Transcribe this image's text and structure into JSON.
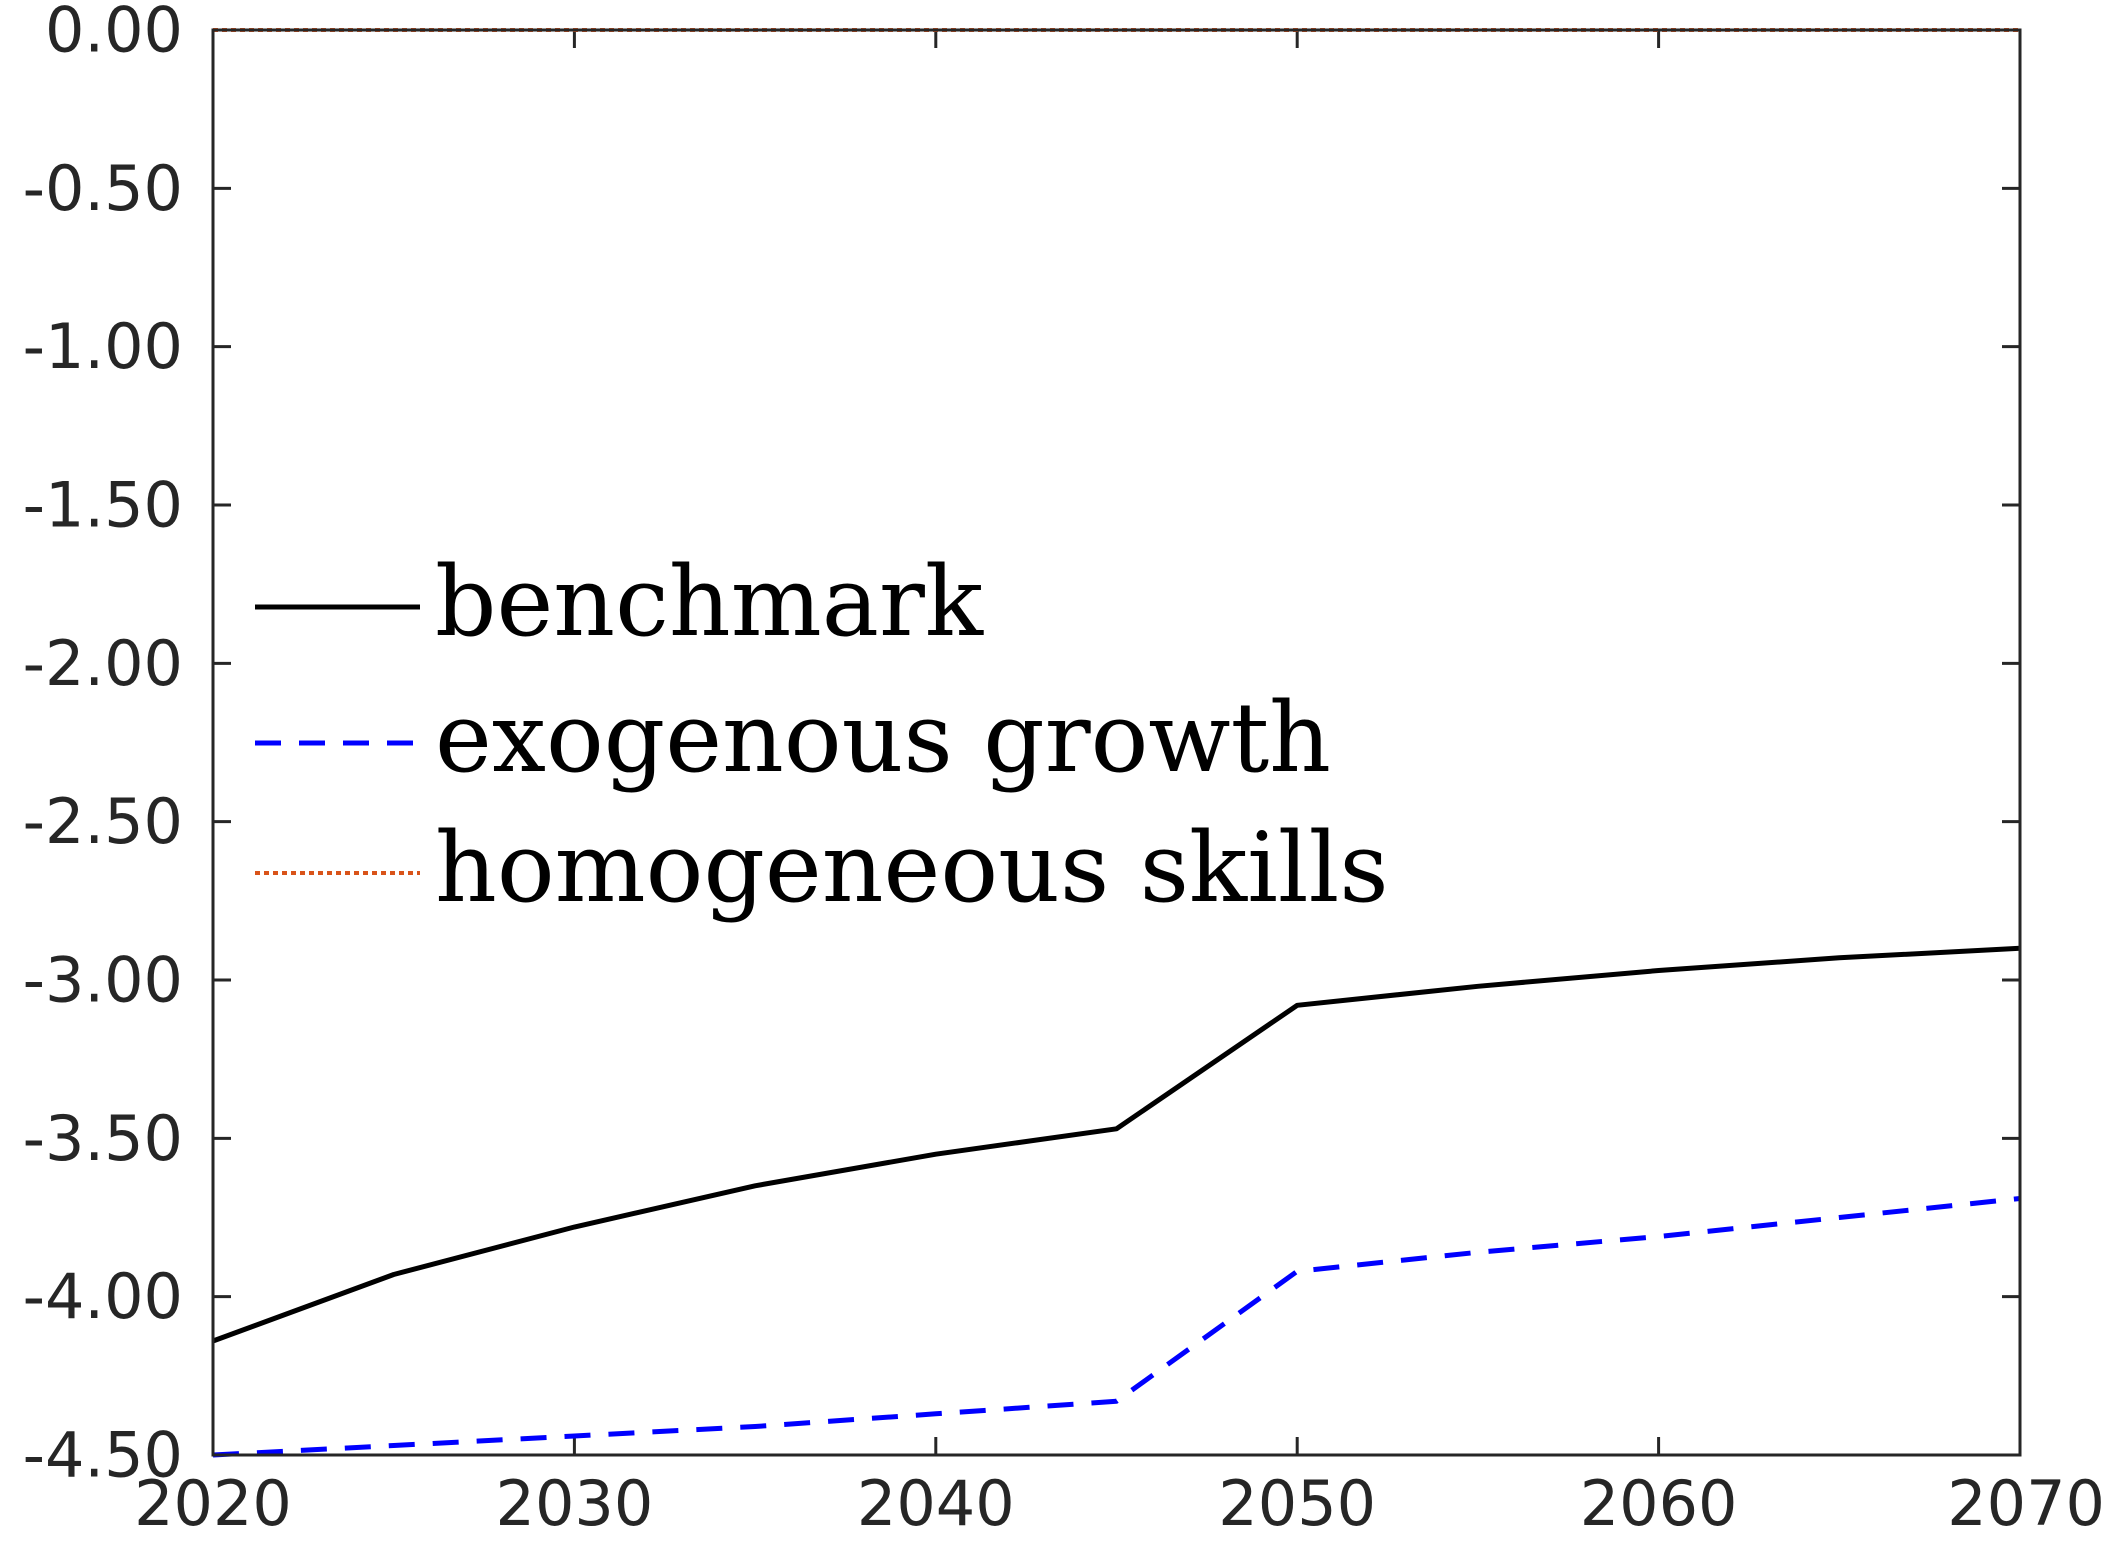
{
  "chart_data": {
    "type": "line",
    "xlim": [
      2020,
      2070
    ],
    "ylim": [
      -4.5,
      0
    ],
    "x_ticks": [
      "2020",
      "2030",
      "2040",
      "2050",
      "2060",
      "2070"
    ],
    "x_tick_values": [
      2020,
      2030,
      2040,
      2050,
      2060,
      2070
    ],
    "y_ticks": [
      "0.00",
      "-0.50",
      "-1.00",
      "-1.50",
      "-2.00",
      "-2.50",
      "-3.00",
      "-3.50",
      "-4.00",
      "-4.50"
    ],
    "y_tick_values": [
      0,
      -0.5,
      -1,
      -1.5,
      -2,
      -2.5,
      -3,
      -3.5,
      -4,
      -4.5
    ],
    "x": [
      2020,
      2025,
      2030,
      2035,
      2040,
      2045,
      2050,
      2055,
      2060,
      2065,
      2070
    ],
    "series": [
      {
        "name": "benchmark",
        "color": "#000000",
        "style": "solid",
        "values": [
          -4.14,
          -3.93,
          -3.78,
          -3.65,
          -3.55,
          -3.47,
          -3.08,
          -3.02,
          -2.97,
          -2.93,
          -2.9
        ]
      },
      {
        "name": "exogenous growth",
        "color": "#0000ff",
        "style": "dashed",
        "values": [
          -4.5,
          -4.47,
          -4.44,
          -4.41,
          -4.37,
          -4.33,
          -3.92,
          -3.86,
          -3.81,
          -3.75,
          -3.69
        ]
      },
      {
        "name": "homogeneous skills",
        "color": "#d95319",
        "style": "dotted",
        "values": [
          0,
          0,
          0,
          0,
          0,
          0,
          0,
          0,
          0,
          0,
          0
        ]
      }
    ],
    "grid": false,
    "legend_position": "middle-left"
  }
}
